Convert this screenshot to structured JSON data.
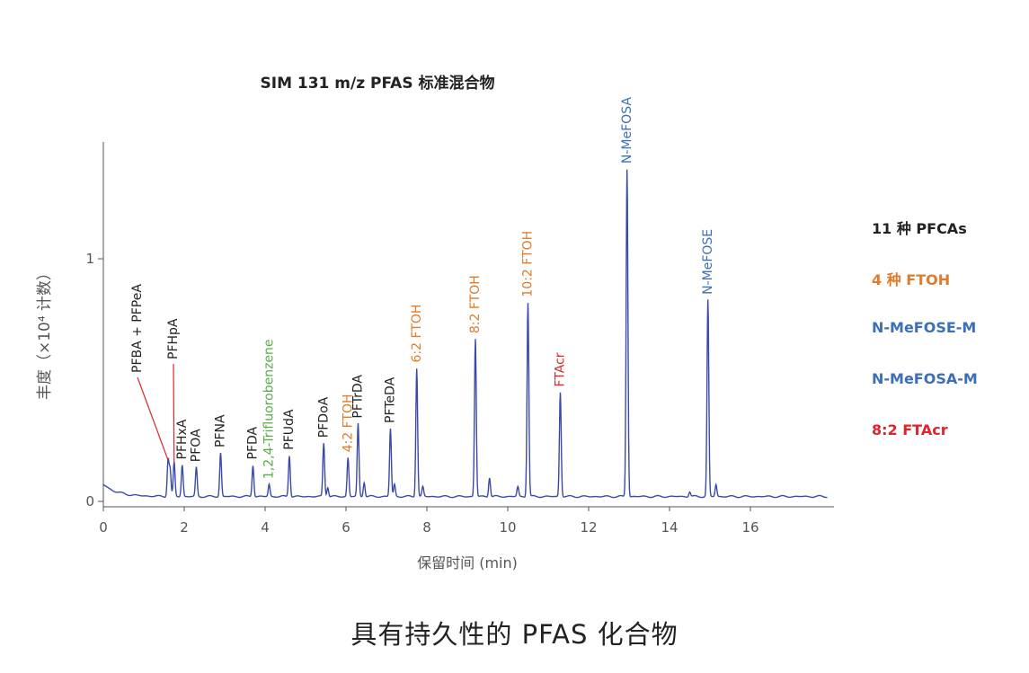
{
  "chart_data": {
    "type": "line",
    "title": "SIM 131 m/z PFAS 标准混合物",
    "xlabel": "保留时间 (min)",
    "ylabel": "丰度（×10⁴ 计数）",
    "xlim": [
      0,
      18
    ],
    "ylim": [
      0,
      1.5
    ],
    "x_ticks": [
      "0",
      "2",
      "4",
      "6",
      "8",
      "10",
      "12",
      "14",
      "16"
    ],
    "y_ticks": [
      "0",
      "1"
    ],
    "baseline": 0.02,
    "peaks": [
      {
        "label": "PFBA + PFPeA",
        "x": 1.6,
        "y": 0.17,
        "group": "PFCAs",
        "leader": true
      },
      {
        "label": "PFHpA",
        "x": 1.75,
        "y": 0.16,
        "group": "PFCAs",
        "leader": true
      },
      {
        "label": "PFHxA",
        "x": 1.95,
        "y": 0.15,
        "group": "PFCAs"
      },
      {
        "label": "PFOA",
        "x": 2.3,
        "y": 0.14,
        "group": "PFCAs"
      },
      {
        "label": "PFNA",
        "x": 2.9,
        "y": 0.2,
        "group": "PFCAs"
      },
      {
        "label": "PFDA",
        "x": 3.7,
        "y": 0.15,
        "group": "PFCAs"
      },
      {
        "label": "1,2,4-Trifluorobenzene",
        "x": 4.1,
        "y": 0.07,
        "group": "internal"
      },
      {
        "label": "PFUdA",
        "x": 4.6,
        "y": 0.19,
        "group": "PFCAs"
      },
      {
        "label": "PFDoA",
        "x": 5.45,
        "y": 0.24,
        "group": "PFCAs"
      },
      {
        "label": "4:2 FTOH",
        "x": 6.05,
        "y": 0.18,
        "group": "FTOH"
      },
      {
        "label": "PFTrDA",
        "x": 6.3,
        "y": 0.32,
        "group": "PFCAs"
      },
      {
        "label": "PFTeDA",
        "x": 7.1,
        "y": 0.3,
        "group": "PFCAs"
      },
      {
        "label": "6:2 FTOH",
        "x": 7.75,
        "y": 0.55,
        "group": "FTOH"
      },
      {
        "label": "8:2 FTOH",
        "x": 9.2,
        "y": 0.67,
        "group": "FTOH"
      },
      {
        "label": "10:2 FTOH",
        "x": 10.5,
        "y": 0.82,
        "group": "FTOH"
      },
      {
        "label": "FTAcr",
        "x": 11.3,
        "y": 0.45,
        "group": "FTAcr"
      },
      {
        "label": "N-MeFOSA",
        "x": 12.95,
        "y": 1.37,
        "group": "MeFOSA"
      },
      {
        "label": "N-MeFOSE",
        "x": 14.95,
        "y": 0.83,
        "group": "MeFOSE"
      }
    ],
    "minor_peaks": [
      {
        "x": 1.65,
        "y": 0.13
      },
      {
        "x": 5.55,
        "y": 0.06
      },
      {
        "x": 6.45,
        "y": 0.08
      },
      {
        "x": 7.2,
        "y": 0.07
      },
      {
        "x": 7.9,
        "y": 0.06
      },
      {
        "x": 9.55,
        "y": 0.1
      },
      {
        "x": 10.25,
        "y": 0.06
      },
      {
        "x": 14.5,
        "y": 0.04
      },
      {
        "x": 15.15,
        "y": 0.07
      }
    ],
    "legend": [
      {
        "label": "11  种 PFCAs",
        "color": "#222222"
      },
      {
        "label": "4  种 FTOH",
        "color": "#e07b2b"
      },
      {
        "label": "N-MeFOSE-M",
        "color": "#3c6fb6"
      },
      {
        "label": "N-MeFOSA-M",
        "color": "#3c6fb6"
      },
      {
        "label": "8:2 FTAcr",
        "color": "#e0242c"
      }
    ],
    "legend_placement": "right"
  },
  "colors": {
    "trace": "#3b4aa8",
    "PFCAs": "#222222",
    "FTOH": "#e07b2b",
    "MeFOSA": "#3c6fb6",
    "MeFOSE": "#3c6fb6",
    "FTAcr": "#e0242c",
    "internal": "#5aab4a",
    "leader": "#e0242c",
    "axis": "#555555"
  },
  "caption": "具有持久性的 PFAS 化合物"
}
